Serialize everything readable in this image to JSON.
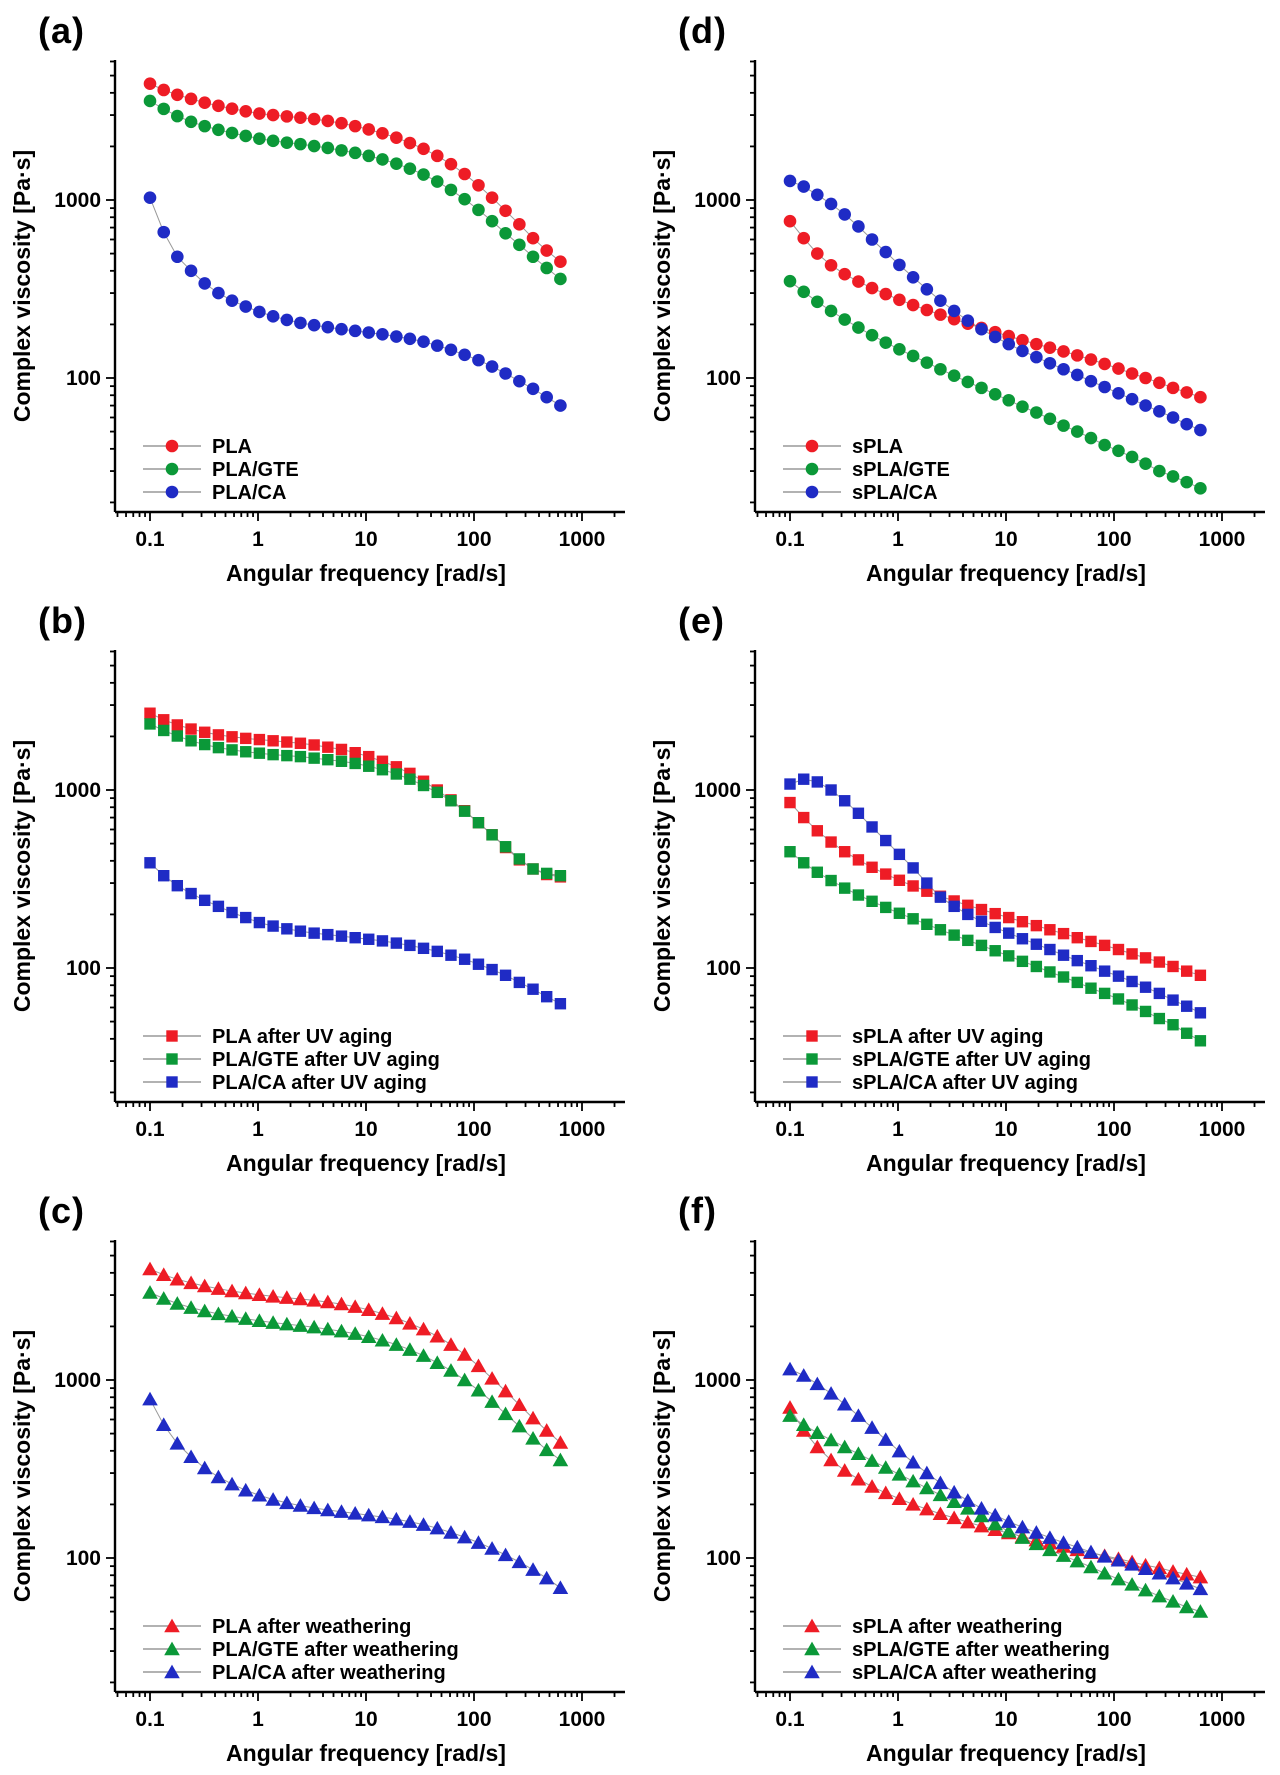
{
  "figure": {
    "background": "#ffffff",
    "accent_colors": {
      "red": "#ee1c25",
      "green": "#0b9838",
      "blue": "#1f2bc5",
      "line_gray": "#999999"
    }
  },
  "chart_data": {
    "type": "line",
    "scale": "log-log",
    "grid": "off",
    "legend_position": "bottom-left-inside",
    "xlabel": "Angular frequency [rad/s]",
    "ylabel": "Complex viscosity [Pa·s]",
    "x_tick_values": [
      0.1,
      1,
      10,
      100,
      1000
    ],
    "x_tick_labels": [
      "0.1",
      "1",
      "10",
      "100",
      "1000"
    ],
    "y_tick_values": [
      100,
      1000
    ],
    "y_tick_labels": [
      "100",
      "1000"
    ],
    "xlim": [
      0.046,
      3300
    ],
    "ylim": [
      17.7,
      6120
    ],
    "x_rad_per_s": [
      0.1,
      0.134,
      0.179,
      0.24,
      0.321,
      0.43,
      0.575,
      0.77,
      1.03,
      1.38,
      1.85,
      2.47,
      3.31,
      4.43,
      5.93,
      7.94,
      10.6,
      14.2,
      19.1,
      25.5,
      34.1,
      45.7,
      61.2,
      81.9,
      110,
      147,
      196,
      263,
      352,
      471,
      631
    ],
    "panels": [
      {
        "id": "(a)",
        "marker": "circle",
        "series": [
          {
            "name": "PLA",
            "color": "#ee1c25",
            "y": [
              4500,
              4150,
              3900,
              3700,
              3520,
              3380,
              3260,
              3150,
              3060,
              3000,
              2950,
              2900,
              2850,
              2780,
              2700,
              2600,
              2490,
              2370,
              2240,
              2090,
              1940,
              1770,
              1590,
              1400,
              1210,
              1030,
              870,
              730,
              610,
              520,
              450
            ]
          },
          {
            "name": "PLA/GTE",
            "color": "#0b9838",
            "y": [
              3600,
              3250,
              2960,
              2750,
              2600,
              2480,
              2380,
              2290,
              2210,
              2150,
              2100,
              2060,
              2010,
              1960,
              1900,
              1840,
              1770,
              1690,
              1600,
              1500,
              1390,
              1270,
              1140,
              1010,
              880,
              760,
              650,
              560,
              480,
              415,
              360
            ]
          },
          {
            "name": "PLA/CA",
            "color": "#1f2bc5",
            "y": [
              1030,
              660,
              480,
              400,
              340,
              300,
              272,
              252,
              235,
              222,
              212,
              204,
              198,
              193,
              188,
              184,
              180,
              176,
              171,
              166,
              160,
              152,
              144,
              135,
              126,
              116,
              106,
              96,
              87,
              78,
              70
            ]
          }
        ]
      },
      {
        "id": "(d)",
        "marker": "circle",
        "series": [
          {
            "name": "sPLA",
            "color": "#ee1c25",
            "y": [
              760,
              610,
              500,
              430,
              383,
              348,
              320,
              296,
              275,
              257,
              241,
              227,
              214,
              202,
              191,
              181,
              172,
              163,
              155,
              148,
              141,
              134,
              127,
              120,
              113,
              106,
              100,
              94,
              88,
              83,
              78
            ]
          },
          {
            "name": "sPLA/GTE",
            "color": "#0b9838",
            "y": [
              350,
              305,
              268,
              238,
              213,
              192,
              174,
              158,
              145,
              133,
              122,
              112,
              103,
              95,
              88,
              81,
              75,
              69,
              64,
              59,
              54,
              50,
              46,
              42,
              39,
              36,
              33,
              30,
              28,
              26,
              24
            ]
          },
          {
            "name": "sPLA/CA",
            "color": "#1f2bc5",
            "y": [
              1280,
              1190,
              1070,
              950,
              830,
              710,
              600,
              510,
              432,
              368,
              315,
              272,
              238,
              210,
              188,
              170,
              155,
              142,
              131,
              121,
              112,
              104,
              96,
              89,
              82,
              76,
              70,
              65,
              60,
              55,
              51
            ]
          }
        ]
      },
      {
        "id": "(b)",
        "marker": "square",
        "series": [
          {
            "name": "PLA after UV aging",
            "color": "#ee1c25",
            "y": [
              2700,
              2480,
              2320,
              2200,
              2110,
              2040,
              1990,
              1950,
              1920,
              1890,
              1860,
              1830,
              1790,
              1740,
              1690,
              1620,
              1540,
              1450,
              1350,
              1240,
              1120,
              1000,
              880,
              765,
              655,
              560,
              475,
              405,
              360,
              335,
              325
            ]
          },
          {
            "name": "PLA/GTE after UV aging",
            "color": "#0b9838",
            "y": [
              2350,
              2160,
              2010,
              1890,
              1800,
              1730,
              1680,
              1640,
              1610,
              1580,
              1560,
              1540,
              1510,
              1480,
              1450,
              1410,
              1360,
              1300,
              1230,
              1150,
              1060,
              970,
              870,
              760,
              655,
              560,
              480,
              410,
              360,
              340,
              330
            ]
          },
          {
            "name": "PLA/CA after UV aging",
            "color": "#1f2bc5",
            "y": [
              390,
              330,
              290,
              262,
              240,
              222,
              205,
              192,
              180,
              172,
              166,
              161,
              157,
              154,
              151,
              148,
              145,
              142,
              138,
              134,
              129,
              124,
              118,
              112,
              105,
              98,
              91,
              83,
              76,
              69,
              63
            ]
          }
        ]
      },
      {
        "id": "(e)",
        "marker": "square",
        "series": [
          {
            "name": "sPLA after UV aging",
            "color": "#ee1c25",
            "y": [
              850,
              700,
              590,
              510,
              450,
              405,
              368,
              337,
              311,
              289,
              270,
              253,
              238,
              225,
              213,
              202,
              192,
              182,
              173,
              164,
              156,
              148,
              141,
              134,
              127,
              120,
              114,
              108,
              102,
              96,
              91
            ]
          },
          {
            "name": "sPLA/GTE after UV aging",
            "color": "#0b9838",
            "y": [
              450,
              390,
              345,
              310,
              281,
              257,
              237,
              219,
              203,
              189,
              176,
              164,
              153,
              143,
              134,
              125,
              117,
              109,
              102,
              95,
              89,
              83,
              77,
              72,
              67,
              62,
              57,
              52,
              48,
              43,
              39
            ]
          },
          {
            "name": "sPLA/CA after UV aging",
            "color": "#1f2bc5",
            "y": [
              1080,
              1150,
              1110,
              1000,
              870,
              740,
              620,
              520,
              435,
              365,
              300,
              250,
              222,
              200,
              183,
              169,
              157,
              146,
              136,
              127,
              118,
              110,
              103,
              96,
              90,
              84,
              78,
              72,
              66,
              61,
              56
            ]
          }
        ]
      },
      {
        "id": "(c)",
        "marker": "triangle",
        "series": [
          {
            "name": "PLA after weathering",
            "color": "#ee1c25",
            "y": [
              4200,
              3900,
              3680,
              3510,
              3370,
              3260,
              3160,
              3080,
              3010,
              2950,
              2900,
              2850,
              2800,
              2740,
              2670,
              2580,
              2480,
              2360,
              2230,
              2080,
              1930,
              1760,
              1580,
              1390,
              1200,
              1020,
              865,
              725,
              610,
              520,
              445
            ]
          },
          {
            "name": "PLA/GTE after weathering",
            "color": "#0b9838",
            "y": [
              3100,
              2870,
              2690,
              2550,
              2440,
              2350,
              2280,
              2210,
              2150,
              2100,
              2060,
              2020,
              1980,
              1930,
              1880,
              1820,
              1750,
              1670,
              1580,
              1480,
              1370,
              1250,
              1130,
              1000,
              875,
              755,
              645,
              550,
              470,
              405,
              355
            ]
          },
          {
            "name": "PLA/CA after weathering",
            "color": "#1f2bc5",
            "y": [
              780,
              560,
              440,
              370,
              320,
              285,
              260,
              240,
              225,
              213,
              204,
              197,
              191,
              186,
              182,
              178,
              174,
              170,
              165,
              160,
              154,
              147,
              139,
              131,
              122,
              113,
              104,
              95,
              86,
              77,
              68
            ]
          }
        ]
      },
      {
        "id": "(f)",
        "marker": "triangle",
        "series": [
          {
            "name": "sPLA after weathering",
            "color": "#ee1c25",
            "y": [
              700,
              520,
              420,
              355,
              310,
              277,
              252,
              232,
              215,
              200,
              188,
              177,
              168,
              159,
              151,
              144,
              138,
              132,
              126,
              121,
              116,
              111,
              107,
              103,
              99,
              95,
              91,
              88,
              84,
              81,
              78
            ]
          },
          {
            "name": "sPLA/GTE after weathering",
            "color": "#0b9838",
            "y": [
              630,
              560,
              505,
              460,
              420,
              385,
              352,
              322,
              295,
              270,
              247,
              226,
              207,
              190,
              172,
              155,
              141,
              130,
              120,
              111,
              103,
              96,
              89,
              82,
              76,
              71,
              66,
              61,
              57,
              53,
              50
            ]
          },
          {
            "name": "sPLA/CA after weathering",
            "color": "#1f2bc5",
            "y": [
              1150,
              1060,
              950,
              840,
              730,
              630,
              540,
              462,
              398,
              345,
              300,
              264,
              234,
              210,
              190,
              174,
              160,
              149,
              139,
              130,
              122,
              115,
              108,
              102,
              97,
              92,
              87,
              82,
              77,
              72,
              67
            ]
          }
        ]
      }
    ]
  }
}
